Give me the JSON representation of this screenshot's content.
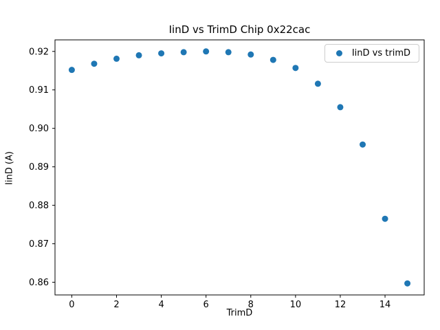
{
  "chart_data": {
    "type": "scatter",
    "title": "IinD vs TrimD Chip 0x22cac",
    "xlabel": "TrimD",
    "ylabel": "IinD (A)",
    "legend": {
      "label": "IinD vs trimD",
      "position": "upper right"
    },
    "marker_color": "#1f77b4",
    "x": [
      0,
      1,
      2,
      3,
      4,
      5,
      6,
      7,
      8,
      9,
      10,
      11,
      12,
      13,
      14,
      15
    ],
    "y": [
      0.9152,
      0.9168,
      0.9181,
      0.919,
      0.9195,
      0.9198,
      0.92,
      0.9198,
      0.9192,
      0.9178,
      0.9157,
      0.9116,
      0.9055,
      0.8958,
      0.8765,
      0.8597
    ],
    "xlim": [
      -0.75,
      15.75
    ],
    "ylim": [
      0.8567,
      0.923
    ],
    "xticks": [
      0,
      2,
      4,
      6,
      8,
      10,
      12,
      14
    ],
    "xtick_labels": [
      "0",
      "2",
      "4",
      "6",
      "8",
      "10",
      "12",
      "14"
    ],
    "yticks": [
      0.86,
      0.87,
      0.88,
      0.89,
      0.9,
      0.91,
      0.92
    ],
    "ytick_labels": [
      "0.86",
      "0.87",
      "0.88",
      "0.89",
      "0.90",
      "0.91",
      "0.92"
    ],
    "grid": false
  }
}
